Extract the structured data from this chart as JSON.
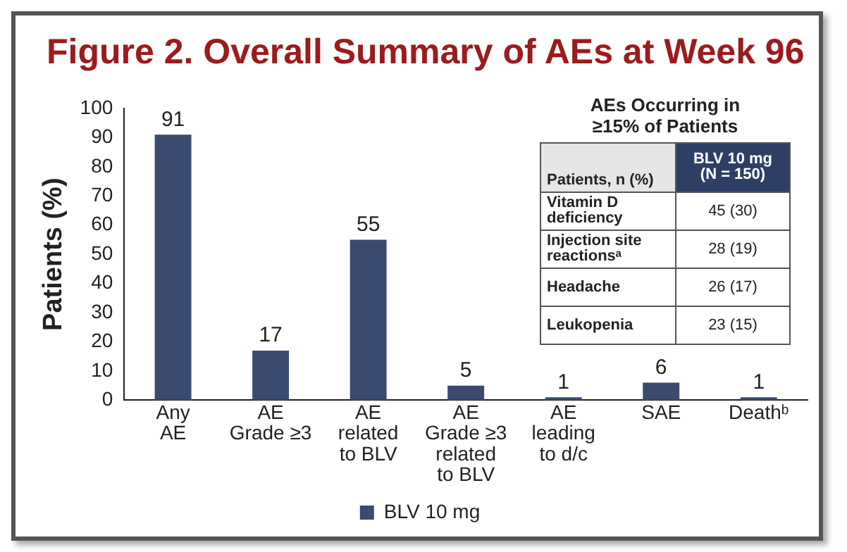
{
  "chart_data": [
    {
      "type": "bar",
      "title": "Figure 2. Overall Summary of AEs at Week 96",
      "ylabel": "Patients (%)",
      "categories": [
        "Any\nAE",
        "AE\nGrade ≥3",
        "AE\nrelated\nto BLV",
        "AE\nGrade ≥3\nrelated\nto BLV",
        "AE\nleading\nto d/c",
        "SAE",
        "Deathᵇ"
      ],
      "series": [
        {
          "name": "BLV 10 mg",
          "color": "#3b4a6e",
          "values": [
            91,
            17,
            55,
            5,
            1,
            6,
            1
          ]
        }
      ],
      "ylim": [
        0,
        100
      ],
      "yticks": [
        0,
        10,
        20,
        30,
        40,
        50,
        60,
        70,
        80,
        90,
        100
      ],
      "data_labels": true,
      "legend": "bottom",
      "grid": false
    },
    {
      "type": "other",
      "title": "AEs Occurring in\n≥15% of Patients",
      "annotations": [
        "Patients, n (%)",
        "BLV 10 mg\n(N = 150)",
        "Vitamin D\ndeficiency",
        "45 (30)",
        "Injection site\nreactionsᵃ",
        "28 (19)",
        "Headache",
        "26 (17)",
        "Leukopenia",
        "23 (15)"
      ]
    }
  ]
}
